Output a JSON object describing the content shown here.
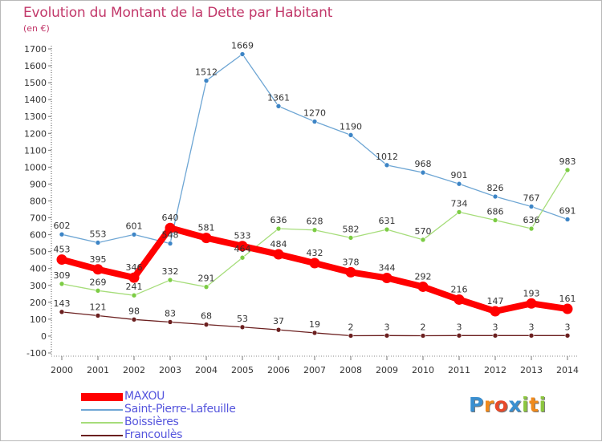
{
  "title": "Evolution du Montant de la Dette par Habitant",
  "unit": "(en €)",
  "logo": {
    "text": "Proxiti",
    "letters": [
      {
        "ch": "P",
        "color": "#3a8fd0"
      },
      {
        "ch": "r",
        "color": "#f08a1c"
      },
      {
        "ch": "o",
        "color": "#e84a2a"
      },
      {
        "ch": "x",
        "color": "#3a8fd0"
      },
      {
        "ch": "i",
        "color": "#8cc63f"
      },
      {
        "ch": "t",
        "color": "#f08a1c"
      },
      {
        "ch": "i",
        "color": "#8cc63f"
      }
    ]
  },
  "chart_data": {
    "type": "line",
    "x": [
      2000,
      2001,
      2002,
      2003,
      2004,
      2005,
      2006,
      2007,
      2008,
      2009,
      2010,
      2011,
      2012,
      2013,
      2014
    ],
    "ylim": [
      -100,
      1700
    ],
    "yticks": [
      -100,
      0,
      100,
      200,
      300,
      400,
      500,
      600,
      700,
      800,
      900,
      1000,
      1100,
      1200,
      1300,
      1400,
      1500,
      1600,
      1700
    ],
    "grid": false,
    "legend_position": "bottom-left",
    "series": [
      {
        "name": "MAXOU",
        "color": "#ff0000",
        "style": "thick",
        "values": [
          453,
          395,
          346,
          640,
          581,
          533,
          484,
          432,
          378,
          344,
          292,
          216,
          147,
          193,
          161
        ]
      },
      {
        "name": "Saint-Pierre-Lafeuille",
        "color": "#6ea6d4",
        "point_color": "#3d85c6",
        "style": "thin",
        "values": [
          602,
          553,
          601,
          548,
          1512,
          1669,
          1361,
          1270,
          1190,
          1012,
          968,
          901,
          826,
          767,
          691
        ]
      },
      {
        "name": "Boissières",
        "color": "#a6dd7a",
        "point_color": "#7ccc44",
        "style": "thin",
        "values": [
          309,
          269,
          241,
          332,
          291,
          464,
          636,
          628,
          582,
          631,
          570,
          734,
          686,
          636,
          983
        ]
      },
      {
        "name": "Francoulès",
        "color": "#6b1f1f",
        "point_color": "#6b1f1f",
        "style": "thin",
        "values": [
          143,
          121,
          98,
          83,
          68,
          53,
          37,
          19,
          2,
          3,
          2,
          3,
          3,
          3,
          3
        ]
      }
    ]
  }
}
